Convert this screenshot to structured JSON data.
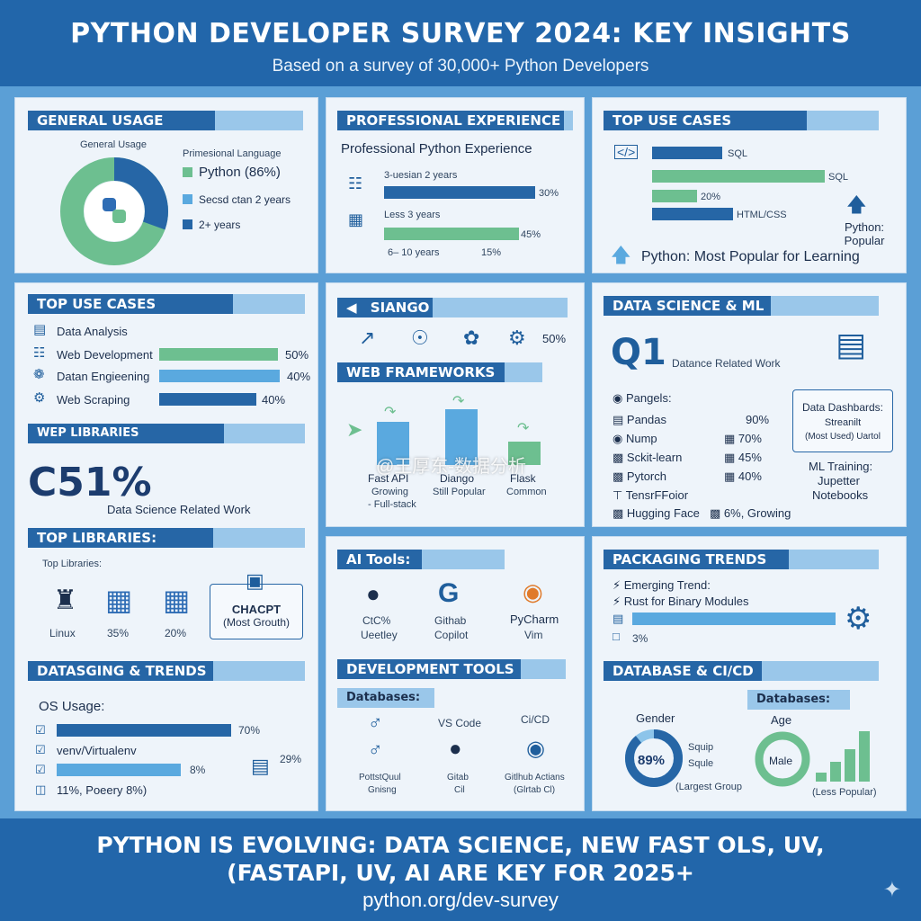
{
  "header": {
    "title": "PYTHON DEVELOPER SURVEY 2024: KEY INSIGHTS",
    "subtitle": "Based on a survey of 30,000+ Python Developers"
  },
  "p1": {
    "title": "GENERAL USAGE",
    "chart_label": "General Usage",
    "legend_title": "Primesional Language",
    "legend": [
      {
        "label": "Python (86%)",
        "value": 86,
        "color": "#6dbf90"
      },
      {
        "label": "Secsd ctan 2 years",
        "color": "#5aa9df"
      },
      {
        "label": "2+ years",
        "color": "#2666a6"
      }
    ]
  },
  "p2": {
    "title": "PROFESSIONAL EXPERIENCE",
    "subtitle": "Professional Python Experience",
    "rows": [
      {
        "label": "3-uesian 2 years",
        "value": 30,
        "pct": "30%"
      },
      {
        "label": "Less 3 years",
        "value": 45,
        "pct": "45%"
      }
    ],
    "last_label": "6– 10 years",
    "last_pct": "15%"
  },
  "p3": {
    "title": "TOP USE CASES",
    "items": [
      "SQL",
      "SQL",
      "20%",
      "HTML/CSS"
    ],
    "side": "Python: Popular",
    "bottom": "Python: Most Popular for Learning"
  },
  "p4": {
    "title": "TOP USE CASES",
    "rows": [
      {
        "label": "Data Analysis"
      },
      {
        "label": "Web Development",
        "value": 50,
        "pct": "50%"
      },
      {
        "label": "Datan Engieening",
        "value": 40,
        "pct": "40%"
      },
      {
        "label": "Web Scraping",
        "value": 40,
        "pct": "40%"
      }
    ],
    "libs_title": "WEP LIBRARIES",
    "big": "C51%",
    "big_label": "Data Science Related Work"
  },
  "p4b": {
    "title": "TOP LIBRARIES:",
    "sub": "Top Libraries:",
    "items": [
      "Linux",
      "35%",
      "20%"
    ],
    "box_title": "CHACPT",
    "box_sub": "(Most Grouth)"
  },
  "p4c": {
    "title": "DATASGING & TRENDS",
    "os_label": "OS Usage:",
    "rows": [
      {
        "value": 70,
        "pct": "70%"
      },
      {
        "label": "venv/Virtualenv"
      },
      {
        "value": 8,
        "pct": "8%"
      }
    ],
    "last": "11%, Poeery   8%)",
    "side_pct": "29%"
  },
  "p5": {
    "title": "SIANGO",
    "pct": "50%",
    "wf_title": "WEB FRAMEWORKS",
    "frameworks": [
      {
        "name": "Fast API",
        "note1": "Growing",
        "note2": "- Full-stack",
        "value": 55
      },
      {
        "name": "Diango",
        "note1": "Still Popular",
        "note2": "",
        "value": 70
      },
      {
        "name": "Flask",
        "note1": "Common",
        "note2": "",
        "value": 30
      }
    ]
  },
  "p6": {
    "title": "DATA SCIENCE & ML",
    "big": "Q1",
    "big_label": "Datance Related Work",
    "pangels": "Pangels:",
    "libs": [
      {
        "name": "Pandas",
        "pct": "90%"
      },
      {
        "name": "Nump",
        "pct": "70%"
      },
      {
        "name": "Sckit-learn",
        "pct": "45%"
      },
      {
        "name": "Pytorch",
        "pct": "40%"
      },
      {
        "name": "TensrFFoior",
        "pct": ""
      },
      {
        "name": "Hugging Face",
        "pct": "6%, Growing"
      }
    ],
    "dash_title": "Data Dashbards:",
    "dash_1": "Streanilt",
    "dash_2": "(Most Used) Uartol",
    "ml1": "ML Training:",
    "ml2": "Jupetter",
    "ml3": "Notebooks"
  },
  "p7": {
    "title": "AI Tools:",
    "tools": [
      {
        "name": "CtC%",
        "sub": "Ueetley"
      },
      {
        "name": "Githab",
        "sub": "Copilot"
      },
      {
        "name": "PyCharm",
        "sub": "Vim"
      }
    ],
    "dev_title": "DEVELOPMENT TOOLS",
    "db_title": "Databases:",
    "db": [
      {
        "name": "",
        "sub1": "PottstQuul",
        "sub2": "Gnisng"
      },
      {
        "name": "VS Code",
        "sub1": "Gitab",
        "sub2": "Cil"
      },
      {
        "name": "Ci/CD",
        "sub1": "Gitlhub Actians",
        "sub2": "(Glrtab Cl)"
      }
    ]
  },
  "p8": {
    "title": "PACKAGING TRENDS",
    "l1": "Emerging Trend:",
    "l2": "Rust for Binary Modules",
    "pct": "3%",
    "db_title": "DATABASE & CI/CD",
    "dbl": "Databases:",
    "gender": "Gender",
    "age": "Age",
    "donut_pct": "89%",
    "sq1": "Squip",
    "sq2": "Squle",
    "lg": "(Largest Group",
    "male": "Male",
    "less": "(Less Popular)"
  },
  "footer": {
    "line1": "PYTHON IS EVOLVING: DATA SCIENCE, NEW FAST OLS, UV,",
    "line2": "(FASTAPI, UV, AI ARE KEY FOR 2025+",
    "url": "python.org/dev-survey"
  },
  "watermark": "@王厚东-数据分析"
}
